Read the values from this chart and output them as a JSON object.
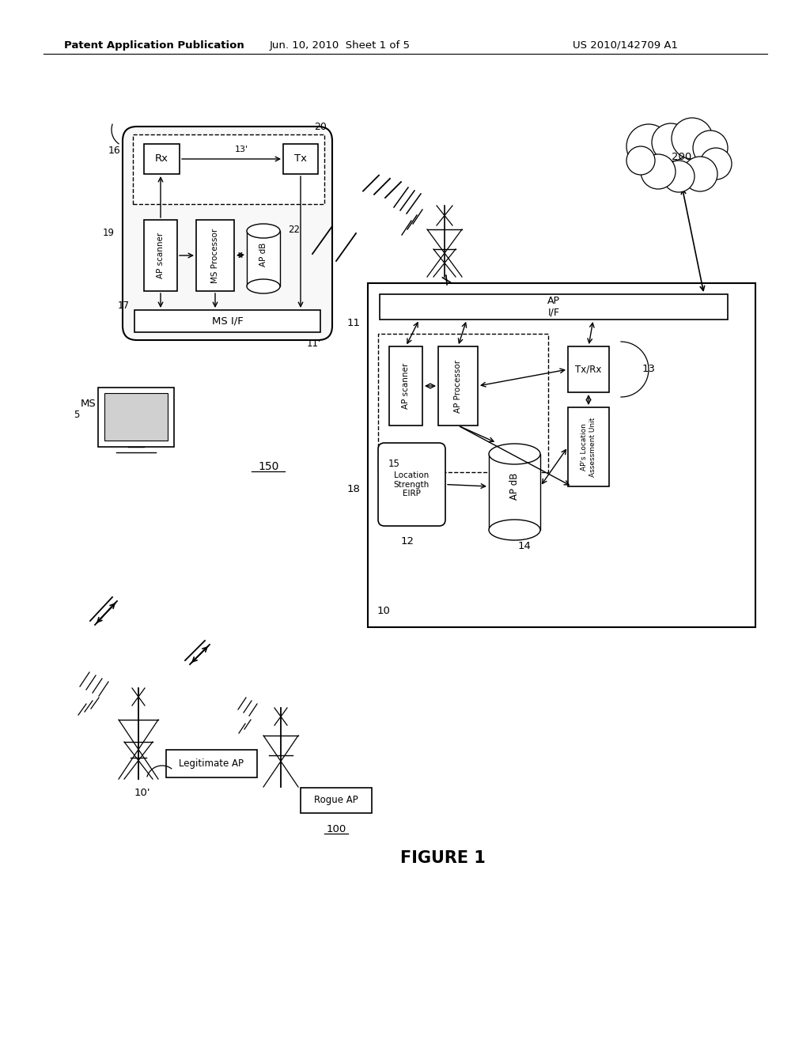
{
  "title_left": "Patent Application Publication",
  "title_center": "Jun. 10, 2010  Sheet 1 of 5",
  "title_right": "US 2010/142709 A1",
  "figure_label": "FIGURE 1",
  "bg_color": "#ffffff",
  "line_color": "#000000",
  "text_color": "#000000"
}
